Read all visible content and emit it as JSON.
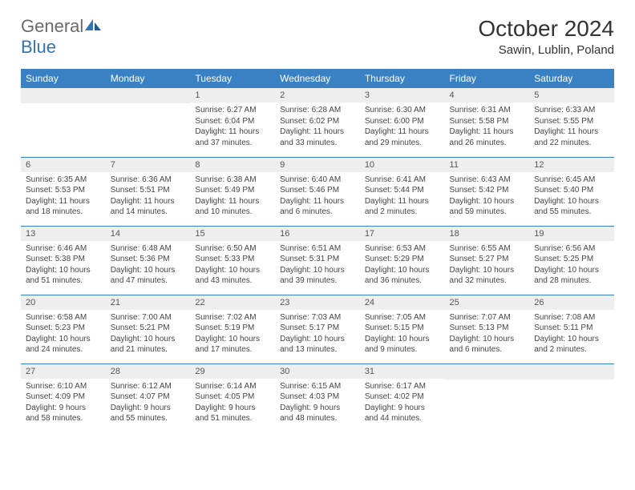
{
  "logo": {
    "general": "General",
    "blue": "Blue"
  },
  "title": "October 2024",
  "location": "Sawin, Lublin, Poland",
  "colors": {
    "header_bg": "#3a81c4",
    "header_text": "#ffffff",
    "daynum_bg": "#eeeeee",
    "border": "#3a81c4",
    "logo_gray": "#6a6a6a",
    "logo_blue": "#2f75b5"
  },
  "day_labels": [
    "Sunday",
    "Monday",
    "Tuesday",
    "Wednesday",
    "Thursday",
    "Friday",
    "Saturday"
  ],
  "weeks": [
    [
      {
        "blank": true
      },
      {
        "blank": true
      },
      {
        "num": "1",
        "sunrise": "Sunrise: 6:27 AM",
        "sunset": "Sunset: 6:04 PM",
        "daylight": "Daylight: 11 hours and 37 minutes."
      },
      {
        "num": "2",
        "sunrise": "Sunrise: 6:28 AM",
        "sunset": "Sunset: 6:02 PM",
        "daylight": "Daylight: 11 hours and 33 minutes."
      },
      {
        "num": "3",
        "sunrise": "Sunrise: 6:30 AM",
        "sunset": "Sunset: 6:00 PM",
        "daylight": "Daylight: 11 hours and 29 minutes."
      },
      {
        "num": "4",
        "sunrise": "Sunrise: 6:31 AM",
        "sunset": "Sunset: 5:58 PM",
        "daylight": "Daylight: 11 hours and 26 minutes."
      },
      {
        "num": "5",
        "sunrise": "Sunrise: 6:33 AM",
        "sunset": "Sunset: 5:55 PM",
        "daylight": "Daylight: 11 hours and 22 minutes."
      }
    ],
    [
      {
        "num": "6",
        "sunrise": "Sunrise: 6:35 AM",
        "sunset": "Sunset: 5:53 PM",
        "daylight": "Daylight: 11 hours and 18 minutes."
      },
      {
        "num": "7",
        "sunrise": "Sunrise: 6:36 AM",
        "sunset": "Sunset: 5:51 PM",
        "daylight": "Daylight: 11 hours and 14 minutes."
      },
      {
        "num": "8",
        "sunrise": "Sunrise: 6:38 AM",
        "sunset": "Sunset: 5:49 PM",
        "daylight": "Daylight: 11 hours and 10 minutes."
      },
      {
        "num": "9",
        "sunrise": "Sunrise: 6:40 AM",
        "sunset": "Sunset: 5:46 PM",
        "daylight": "Daylight: 11 hours and 6 minutes."
      },
      {
        "num": "10",
        "sunrise": "Sunrise: 6:41 AM",
        "sunset": "Sunset: 5:44 PM",
        "daylight": "Daylight: 11 hours and 2 minutes."
      },
      {
        "num": "11",
        "sunrise": "Sunrise: 6:43 AM",
        "sunset": "Sunset: 5:42 PM",
        "daylight": "Daylight: 10 hours and 59 minutes."
      },
      {
        "num": "12",
        "sunrise": "Sunrise: 6:45 AM",
        "sunset": "Sunset: 5:40 PM",
        "daylight": "Daylight: 10 hours and 55 minutes."
      }
    ],
    [
      {
        "num": "13",
        "sunrise": "Sunrise: 6:46 AM",
        "sunset": "Sunset: 5:38 PM",
        "daylight": "Daylight: 10 hours and 51 minutes."
      },
      {
        "num": "14",
        "sunrise": "Sunrise: 6:48 AM",
        "sunset": "Sunset: 5:36 PM",
        "daylight": "Daylight: 10 hours and 47 minutes."
      },
      {
        "num": "15",
        "sunrise": "Sunrise: 6:50 AM",
        "sunset": "Sunset: 5:33 PM",
        "daylight": "Daylight: 10 hours and 43 minutes."
      },
      {
        "num": "16",
        "sunrise": "Sunrise: 6:51 AM",
        "sunset": "Sunset: 5:31 PM",
        "daylight": "Daylight: 10 hours and 39 minutes."
      },
      {
        "num": "17",
        "sunrise": "Sunrise: 6:53 AM",
        "sunset": "Sunset: 5:29 PM",
        "daylight": "Daylight: 10 hours and 36 minutes."
      },
      {
        "num": "18",
        "sunrise": "Sunrise: 6:55 AM",
        "sunset": "Sunset: 5:27 PM",
        "daylight": "Daylight: 10 hours and 32 minutes."
      },
      {
        "num": "19",
        "sunrise": "Sunrise: 6:56 AM",
        "sunset": "Sunset: 5:25 PM",
        "daylight": "Daylight: 10 hours and 28 minutes."
      }
    ],
    [
      {
        "num": "20",
        "sunrise": "Sunrise: 6:58 AM",
        "sunset": "Sunset: 5:23 PM",
        "daylight": "Daylight: 10 hours and 24 minutes."
      },
      {
        "num": "21",
        "sunrise": "Sunrise: 7:00 AM",
        "sunset": "Sunset: 5:21 PM",
        "daylight": "Daylight: 10 hours and 21 minutes."
      },
      {
        "num": "22",
        "sunrise": "Sunrise: 7:02 AM",
        "sunset": "Sunset: 5:19 PM",
        "daylight": "Daylight: 10 hours and 17 minutes."
      },
      {
        "num": "23",
        "sunrise": "Sunrise: 7:03 AM",
        "sunset": "Sunset: 5:17 PM",
        "daylight": "Daylight: 10 hours and 13 minutes."
      },
      {
        "num": "24",
        "sunrise": "Sunrise: 7:05 AM",
        "sunset": "Sunset: 5:15 PM",
        "daylight": "Daylight: 10 hours and 9 minutes."
      },
      {
        "num": "25",
        "sunrise": "Sunrise: 7:07 AM",
        "sunset": "Sunset: 5:13 PM",
        "daylight": "Daylight: 10 hours and 6 minutes."
      },
      {
        "num": "26",
        "sunrise": "Sunrise: 7:08 AM",
        "sunset": "Sunset: 5:11 PM",
        "daylight": "Daylight: 10 hours and 2 minutes."
      }
    ],
    [
      {
        "num": "27",
        "sunrise": "Sunrise: 6:10 AM",
        "sunset": "Sunset: 4:09 PM",
        "daylight": "Daylight: 9 hours and 58 minutes."
      },
      {
        "num": "28",
        "sunrise": "Sunrise: 6:12 AM",
        "sunset": "Sunset: 4:07 PM",
        "daylight": "Daylight: 9 hours and 55 minutes."
      },
      {
        "num": "29",
        "sunrise": "Sunrise: 6:14 AM",
        "sunset": "Sunset: 4:05 PM",
        "daylight": "Daylight: 9 hours and 51 minutes."
      },
      {
        "num": "30",
        "sunrise": "Sunrise: 6:15 AM",
        "sunset": "Sunset: 4:03 PM",
        "daylight": "Daylight: 9 hours and 48 minutes."
      },
      {
        "num": "31",
        "sunrise": "Sunrise: 6:17 AM",
        "sunset": "Sunset: 4:02 PM",
        "daylight": "Daylight: 9 hours and 44 minutes."
      },
      {
        "blank": true
      },
      {
        "blank": true
      }
    ]
  ]
}
